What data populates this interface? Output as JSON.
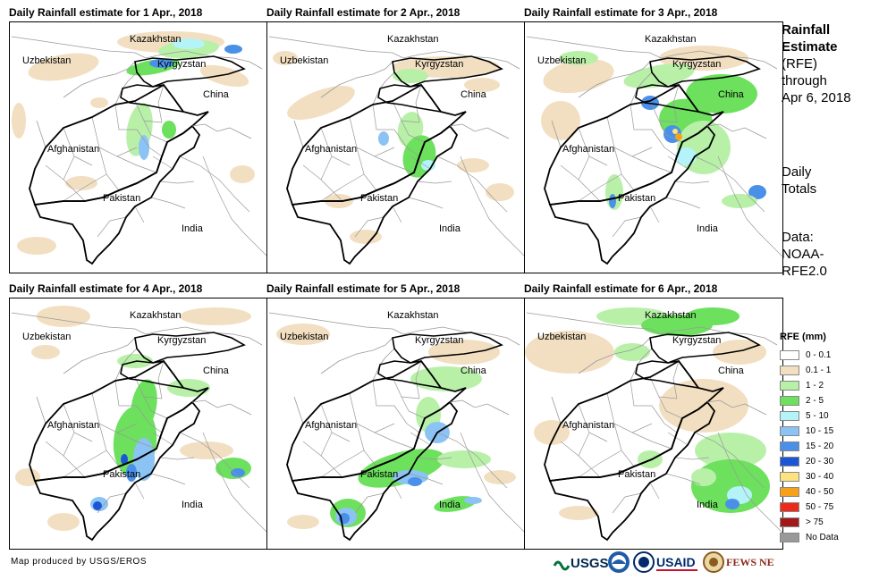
{
  "panels": [
    {
      "title": "Daily Rainfall estimate for 1 Apr., 2018",
      "key": "d1"
    },
    {
      "title": "Daily Rainfall estimate for 2 Apr., 2018",
      "key": "d2"
    },
    {
      "title": "Daily Rainfall estimate for 3 Apr., 2018",
      "key": "d3"
    },
    {
      "title": "Daily Rainfall estimate for 4 Apr., 2018",
      "key": "d4"
    },
    {
      "title": "Daily Rainfall estimate for 5 Apr., 2018",
      "key": "d5"
    },
    {
      "title": "Daily Rainfall estimate for 6 Apr., 2018",
      "key": "d6"
    }
  ],
  "places": {
    "kazakhstan": "Kazakhstan",
    "uzbekistan": "Uzbekistan",
    "kyrgyzstan": "Kyrgyzstan",
    "china": "China",
    "afghanistan": "Afghanistan",
    "pakistan": "Pakistan",
    "india": "India"
  },
  "side": {
    "title_line1": "Rainfall",
    "title_line2": "Estimate",
    "title_line3": "(RFE)",
    "title_line4": "through",
    "title_line5": "Apr 6, 2018",
    "daily_line1": "Daily",
    "daily_line2": "Totals",
    "data_line1": "Data:",
    "data_line2": "NOAA-",
    "data_line3": "RFE2.0"
  },
  "legend": {
    "title": "RFE (mm)",
    "items": [
      {
        "label": "0 - 0.1",
        "color": "#ffffff"
      },
      {
        "label": "0.1 - 1",
        "color": "#f2dfc1"
      },
      {
        "label": "1 - 2",
        "color": "#b8f0a8"
      },
      {
        "label": "2 - 5",
        "color": "#6de05e"
      },
      {
        "label": "5 - 10",
        "color": "#b4f4f8"
      },
      {
        "label": "10 - 15",
        "color": "#8cc3f5"
      },
      {
        "label": "15 - 20",
        "color": "#4a90e8"
      },
      {
        "label": "20 - 30",
        "color": "#1a56d6"
      },
      {
        "label": "30 - 40",
        "color": "#fde282"
      },
      {
        "label": "40 - 50",
        "color": "#f7a11a"
      },
      {
        "label": "50 - 75",
        "color": "#ee2a1a"
      },
      {
        "label": "> 75",
        "color": "#a11a1a"
      },
      {
        "label": "No Data",
        "color": "#999999"
      }
    ]
  },
  "credit": "Map produced by USGS/EROS",
  "logos": {
    "usgs": "USGS",
    "usaid": "USAID",
    "fewsnet": "FEWS NET"
  },
  "icons": [
    "usgs-logo",
    "noaa-logo",
    "usaid-logo",
    "fewsnet-logo"
  ]
}
